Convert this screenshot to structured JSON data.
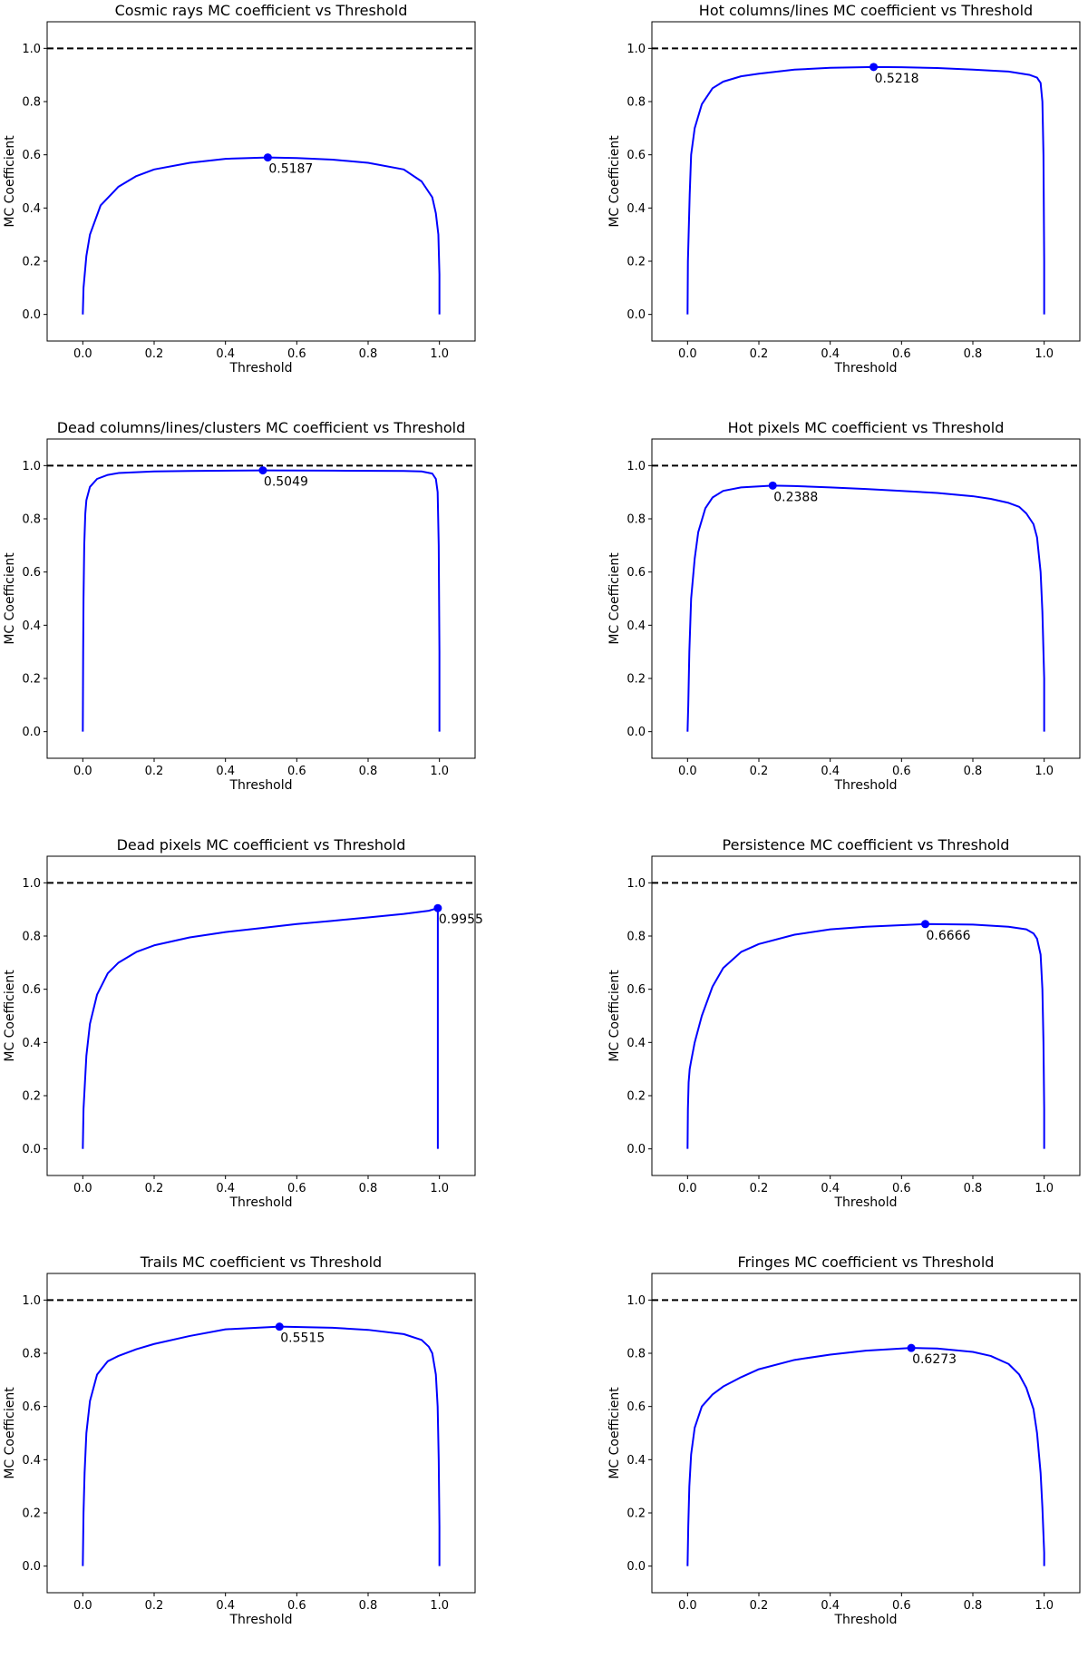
{
  "chart_data": [
    {
      "type": "line",
      "title": "Cosmic rays MC coefficient vs Threshold",
      "xlabel": "Threshold",
      "ylabel": "MC Coefficient",
      "xlim": [
        -0.1,
        1.1
      ],
      "ylim": [
        -0.1,
        1.1
      ],
      "xticks": [
        "0.0",
        "0.2",
        "0.4",
        "0.6",
        "0.8",
        "1.0"
      ],
      "yticks": [
        "0.0",
        "0.2",
        "0.4",
        "0.6",
        "0.8",
        "1.0"
      ],
      "reference_line": {
        "y": 1.0,
        "style": "dashed",
        "color": "#000000"
      },
      "series": [
        {
          "color": "#0000ff",
          "x": [
            0,
            0.002,
            0.01,
            0.02,
            0.05,
            0.1,
            0.15,
            0.2,
            0.3,
            0.4,
            0.5187,
            0.6,
            0.7,
            0.8,
            0.9,
            0.95,
            0.98,
            0.99,
            0.997,
            1.0,
            1.0
          ],
          "y": [
            0,
            0.1,
            0.22,
            0.3,
            0.41,
            0.48,
            0.52,
            0.545,
            0.57,
            0.585,
            0.59,
            0.588,
            0.582,
            0.57,
            0.545,
            0.5,
            0.44,
            0.38,
            0.3,
            0.15,
            0
          ]
        }
      ],
      "best_point": {
        "x": 0.5187,
        "y": 0.59,
        "label": "0.5187"
      }
    },
    {
      "type": "line",
      "title": "Hot columns/lines MC coefficient vs Threshold",
      "xlabel": "Threshold",
      "ylabel": "MC Coefficient",
      "xlim": [
        -0.1,
        1.1
      ],
      "ylim": [
        -0.1,
        1.1
      ],
      "xticks": [
        "0.0",
        "0.2",
        "0.4",
        "0.6",
        "0.8",
        "1.0"
      ],
      "yticks": [
        "0.0",
        "0.2",
        "0.4",
        "0.6",
        "0.8",
        "1.0"
      ],
      "reference_line": {
        "y": 1.0,
        "style": "dashed",
        "color": "#000000"
      },
      "series": [
        {
          "color": "#0000ff",
          "x": [
            0,
            0.001,
            0.003,
            0.006,
            0.01,
            0.02,
            0.04,
            0.07,
            0.1,
            0.15,
            0.2,
            0.3,
            0.4,
            0.5218,
            0.6,
            0.7,
            0.8,
            0.9,
            0.96,
            0.98,
            0.99,
            0.995,
            0.998,
            1.0,
            1.0
          ],
          "y": [
            0,
            0.2,
            0.3,
            0.45,
            0.6,
            0.7,
            0.79,
            0.85,
            0.875,
            0.895,
            0.905,
            0.92,
            0.927,
            0.93,
            0.929,
            0.926,
            0.92,
            0.913,
            0.9,
            0.89,
            0.87,
            0.8,
            0.6,
            0.2,
            0
          ]
        }
      ],
      "best_point": {
        "x": 0.5218,
        "y": 0.93,
        "label": "0.5218"
      }
    },
    {
      "type": "line",
      "title": "Dead columns/lines/clusters MC coefficient vs Threshold",
      "xlabel": "Threshold",
      "ylabel": "MC Coefficient",
      "xlim": [
        -0.1,
        1.1
      ],
      "ylim": [
        -0.1,
        1.1
      ],
      "xticks": [
        "0.0",
        "0.2",
        "0.4",
        "0.6",
        "0.8",
        "1.0"
      ],
      "yticks": [
        "0.0",
        "0.2",
        "0.4",
        "0.6",
        "0.8",
        "1.0"
      ],
      "reference_line": {
        "y": 1.0,
        "style": "dashed",
        "color": "#000000"
      },
      "series": [
        {
          "color": "#0000ff",
          "x": [
            0,
            0.001,
            0.002,
            0.004,
            0.007,
            0.01,
            0.02,
            0.04,
            0.07,
            0.1,
            0.2,
            0.3,
            0.5049,
            0.7,
            0.9,
            0.95,
            0.98,
            0.99,
            0.995,
            0.998,
            1.0,
            1.0
          ],
          "y": [
            0,
            0.3,
            0.5,
            0.7,
            0.82,
            0.87,
            0.92,
            0.95,
            0.965,
            0.972,
            0.978,
            0.98,
            0.982,
            0.981,
            0.98,
            0.978,
            0.97,
            0.95,
            0.9,
            0.7,
            0.3,
            0
          ]
        }
      ],
      "best_point": {
        "x": 0.5049,
        "y": 0.982,
        "label": "0.5049"
      }
    },
    {
      "type": "line",
      "title": "Hot pixels MC coefficient vs Threshold",
      "xlabel": "Threshold",
      "ylabel": "MC Coefficient",
      "xlim": [
        -0.1,
        1.1
      ],
      "ylim": [
        -0.1,
        1.1
      ],
      "xticks": [
        "0.0",
        "0.2",
        "0.4",
        "0.6",
        "0.8",
        "1.0"
      ],
      "yticks": [
        "0.0",
        "0.2",
        "0.4",
        "0.6",
        "0.8",
        "1.0"
      ],
      "reference_line": {
        "y": 1.0,
        "style": "dashed",
        "color": "#000000"
      },
      "series": [
        {
          "color": "#0000ff",
          "x": [
            0,
            0.002,
            0.005,
            0.01,
            0.02,
            0.03,
            0.05,
            0.07,
            0.1,
            0.15,
            0.2388,
            0.3,
            0.4,
            0.5,
            0.6,
            0.7,
            0.8,
            0.85,
            0.9,
            0.93,
            0.95,
            0.97,
            0.98,
            0.99,
            0.995,
            1.0,
            1.0
          ],
          "y": [
            0,
            0.1,
            0.3,
            0.5,
            0.65,
            0.75,
            0.84,
            0.88,
            0.905,
            0.918,
            0.925,
            0.923,
            0.918,
            0.912,
            0.905,
            0.897,
            0.885,
            0.875,
            0.86,
            0.845,
            0.82,
            0.78,
            0.73,
            0.6,
            0.45,
            0.2,
            0
          ]
        }
      ],
      "best_point": {
        "x": 0.2388,
        "y": 0.925,
        "label": "0.2388"
      }
    },
    {
      "type": "line",
      "title": "Dead pixels MC coefficient vs Threshold",
      "xlabel": "Threshold",
      "ylabel": "MC Coefficient",
      "xlim": [
        -0.1,
        1.1
      ],
      "ylim": [
        -0.1,
        1.1
      ],
      "xticks": [
        "0.0",
        "0.2",
        "0.4",
        "0.6",
        "0.8",
        "1.0"
      ],
      "yticks": [
        "0.0",
        "0.2",
        "0.4",
        "0.6",
        "0.8",
        "1.0"
      ],
      "reference_line": {
        "y": 1.0,
        "style": "dashed",
        "color": "#000000"
      },
      "series": [
        {
          "color": "#0000ff",
          "x": [
            0,
            0.002,
            0.01,
            0.02,
            0.04,
            0.07,
            0.1,
            0.15,
            0.2,
            0.3,
            0.4,
            0.5,
            0.6,
            0.7,
            0.8,
            0.9,
            0.97,
            0.9955,
            0.9955
          ],
          "y": [
            0,
            0.15,
            0.35,
            0.47,
            0.58,
            0.66,
            0.7,
            0.74,
            0.765,
            0.795,
            0.815,
            0.83,
            0.845,
            0.857,
            0.87,
            0.883,
            0.895,
            0.905,
            0
          ]
        }
      ],
      "best_point": {
        "x": 0.9955,
        "y": 0.905,
        "label": "0.9955"
      }
    },
    {
      "type": "line",
      "title": "Persistence MC coefficient vs Threshold",
      "xlabel": "Threshold",
      "ylabel": "MC Coefficient",
      "xlim": [
        -0.1,
        1.1
      ],
      "ylim": [
        -0.1,
        1.1
      ],
      "xticks": [
        "0.0",
        "0.2",
        "0.4",
        "0.6",
        "0.8",
        "1.0"
      ],
      "yticks": [
        "0.0",
        "0.2",
        "0.4",
        "0.6",
        "0.8",
        "1.0"
      ],
      "reference_line": {
        "y": 1.0,
        "style": "dashed",
        "color": "#000000"
      },
      "series": [
        {
          "color": "#0000ff",
          "x": [
            0,
            0.001,
            0.003,
            0.006,
            0.01,
            0.02,
            0.04,
            0.07,
            0.1,
            0.15,
            0.2,
            0.3,
            0.4,
            0.5,
            0.6666,
            0.8,
            0.9,
            0.95,
            0.97,
            0.98,
            0.99,
            0.995,
            0.998,
            1.0,
            1.0
          ],
          "y": [
            0,
            0.15,
            0.25,
            0.3,
            0.33,
            0.4,
            0.5,
            0.61,
            0.68,
            0.74,
            0.77,
            0.805,
            0.825,
            0.835,
            0.845,
            0.843,
            0.835,
            0.825,
            0.81,
            0.79,
            0.73,
            0.6,
            0.4,
            0.15,
            0
          ]
        }
      ],
      "best_point": {
        "x": 0.6666,
        "y": 0.845,
        "label": "0.6666"
      }
    },
    {
      "type": "line",
      "title": "Trails MC coefficient vs Threshold",
      "xlabel": "Threshold",
      "ylabel": "MC Coefficient",
      "xlim": [
        -0.1,
        1.1
      ],
      "ylim": [
        -0.1,
        1.1
      ],
      "xticks": [
        "0.0",
        "0.2",
        "0.4",
        "0.6",
        "0.8",
        "1.0"
      ],
      "yticks": [
        "0.0",
        "0.2",
        "0.4",
        "0.6",
        "0.8",
        "1.0"
      ],
      "reference_line": {
        "y": 1.0,
        "style": "dashed",
        "color": "#000000"
      },
      "series": [
        {
          "color": "#0000ff",
          "x": [
            0,
            0.002,
            0.005,
            0.01,
            0.02,
            0.04,
            0.07,
            0.1,
            0.15,
            0.2,
            0.3,
            0.4,
            0.5515,
            0.7,
            0.8,
            0.9,
            0.95,
            0.97,
            0.98,
            0.99,
            0.995,
            0.998,
            1.0,
            1.0
          ],
          "y": [
            0,
            0.2,
            0.35,
            0.5,
            0.62,
            0.72,
            0.77,
            0.79,
            0.815,
            0.835,
            0.865,
            0.89,
            0.9,
            0.896,
            0.888,
            0.872,
            0.85,
            0.825,
            0.8,
            0.72,
            0.6,
            0.4,
            0.15,
            0
          ]
        }
      ],
      "best_point": {
        "x": 0.5515,
        "y": 0.9,
        "label": "0.5515"
      }
    },
    {
      "type": "line",
      "title": "Fringes MC coefficient vs Threshold",
      "xlabel": "Threshold",
      "ylabel": "MC Coefficient",
      "xlim": [
        -0.1,
        1.1
      ],
      "ylim": [
        -0.1,
        1.1
      ],
      "xticks": [
        "0.0",
        "0.2",
        "0.4",
        "0.6",
        "0.8",
        "1.0"
      ],
      "yticks": [
        "0.0",
        "0.2",
        "0.4",
        "0.6",
        "0.8",
        "1.0"
      ],
      "reference_line": {
        "y": 1.0,
        "style": "dashed",
        "color": "#000000"
      },
      "series": [
        {
          "color": "#0000ff",
          "x": [
            0,
            0.002,
            0.005,
            0.01,
            0.02,
            0.04,
            0.07,
            0.1,
            0.15,
            0.2,
            0.3,
            0.4,
            0.5,
            0.6273,
            0.7,
            0.8,
            0.85,
            0.9,
            0.93,
            0.95,
            0.97,
            0.98,
            0.99,
            0.995,
            1.0,
            1.0
          ],
          "y": [
            0,
            0.15,
            0.3,
            0.42,
            0.52,
            0.6,
            0.645,
            0.675,
            0.71,
            0.74,
            0.775,
            0.795,
            0.81,
            0.82,
            0.818,
            0.805,
            0.79,
            0.76,
            0.72,
            0.67,
            0.59,
            0.5,
            0.35,
            0.22,
            0.05,
            0
          ]
        }
      ],
      "best_point": {
        "x": 0.6273,
        "y": 0.82,
        "label": "0.6273"
      }
    }
  ]
}
